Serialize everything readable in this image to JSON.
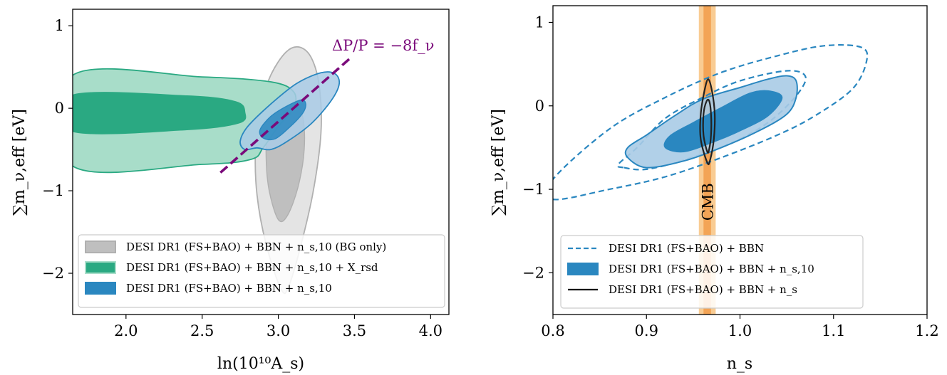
{
  "colors": {
    "gray_outer": "#e4e4e4",
    "gray_inner": "#bfbfbf",
    "gray_edge": "#b0b0b0",
    "green_outer": "#a8ddc9",
    "green_inner": "#2aa982",
    "green_edge": "#2aa982",
    "blue_outer": "#a9cbe6",
    "blue_inner": "#2a87c0",
    "blue_edge": "#2a87c0",
    "purple": "#7a0a7a",
    "cmb_light": "#f9cc93",
    "cmb_dark": "#f3a456"
  },
  "chart_data": [
    {
      "type": "contour",
      "xlabel": "ln(10¹⁰A_s)",
      "ylabel": "∑m_ν,eff [eV]",
      "xlim": [
        1.65,
        4.12
      ],
      "ylim": [
        -2.5,
        1.2
      ],
      "xticks": [
        2.0,
        2.5,
        3.0,
        3.5,
        4.0
      ],
      "xtick_labels": [
        "2.0",
        "2.5",
        "3.0",
        "3.5",
        "4.0"
      ],
      "yticks": [
        1,
        0,
        -1,
        -2
      ],
      "ytick_labels": [
        "1",
        "0",
        "−1",
        "−2"
      ],
      "annotation": {
        "text": "ΔP/P = −8f_ν",
        "line": [
          [
            2.62,
            -0.78
          ],
          [
            3.48,
            0.62
          ]
        ]
      },
      "legend": {
        "position": "lower-right",
        "entries": [
          {
            "label": "DESI DR1 (FS+BAO) + BBN + n_s,10 (BG only)",
            "color": "#bfbfbf"
          },
          {
            "label": "DESI DR1 (FS+BAO) + BBN + n_s,10 + X_rsd",
            "color": "#2aa982"
          },
          {
            "label": "DESI DR1 (FS+BAO) + BBN + n_s,10",
            "color": "#2a87c0"
          }
        ]
      },
      "series": [
        {
          "name": "DESI DR1 (FS+BAO) + BBN + n_s,10 (BG only)",
          "outer": [
            [
              3.02,
              -2.2
            ],
            [
              2.92,
              -1.65
            ],
            [
              2.86,
              -1.05
            ],
            [
              2.85,
              -0.5
            ],
            [
              2.88,
              0.0
            ],
            [
              2.95,
              0.4
            ],
            [
              3.05,
              0.68
            ],
            [
              3.14,
              0.74
            ],
            [
              3.22,
              0.6
            ],
            [
              3.27,
              0.25
            ],
            [
              3.28,
              -0.3
            ],
            [
              3.23,
              -1.0
            ],
            [
              3.15,
              -1.65
            ],
            [
              3.07,
              -2.15
            ]
          ],
          "inner": [
            [
              3.0,
              -1.35
            ],
            [
              2.94,
              -1.0
            ],
            [
              2.92,
              -0.6
            ],
            [
              2.93,
              -0.2
            ],
            [
              2.97,
              0.05
            ],
            [
              3.04,
              0.18
            ],
            [
              3.1,
              0.15
            ],
            [
              3.16,
              -0.1
            ],
            [
              3.17,
              -0.5
            ],
            [
              3.13,
              -0.95
            ],
            [
              3.06,
              -1.3
            ]
          ]
        },
        {
          "name": "DESI DR1 (FS+BAO) + BBN + n_s,10 + X_rsd",
          "outer": [
            [
              1.65,
              0.4
            ],
            [
              2.5,
              0.38
            ],
            [
              2.95,
              0.32
            ],
            [
              3.1,
              0.2
            ],
            [
              3.1,
              0.0
            ],
            [
              3.0,
              -0.22
            ],
            [
              2.9,
              -0.48
            ],
            [
              2.82,
              -0.62
            ],
            [
              2.5,
              -0.68
            ],
            [
              1.65,
              -0.7
            ]
          ],
          "inner": [
            [
              1.65,
              0.16
            ],
            [
              2.4,
              0.15
            ],
            [
              2.72,
              0.08
            ],
            [
              2.78,
              -0.05
            ],
            [
              2.74,
              -0.18
            ],
            [
              2.4,
              -0.26
            ],
            [
              1.65,
              -0.28
            ]
          ]
        },
        {
          "name": "DESI DR1 (FS+BAO) + BBN + n_s,10",
          "outer": [
            [
              2.86,
              -0.48
            ],
            [
              2.78,
              -0.5
            ],
            [
              2.75,
              -0.4
            ],
            [
              2.8,
              -0.22
            ],
            [
              2.95,
              0.05
            ],
            [
              3.12,
              0.3
            ],
            [
              3.28,
              0.43
            ],
            [
              3.37,
              0.42
            ],
            [
              3.4,
              0.3
            ],
            [
              3.35,
              0.1
            ],
            [
              3.22,
              -0.18
            ],
            [
              3.06,
              -0.4
            ],
            [
              2.95,
              -0.5
            ]
          ],
          "inner": [
            [
              2.9,
              -0.36
            ],
            [
              2.88,
              -0.26
            ],
            [
              2.95,
              -0.1
            ],
            [
              3.05,
              0.02
            ],
            [
              3.15,
              0.1
            ],
            [
              3.18,
              0.05
            ],
            [
              3.16,
              -0.06
            ],
            [
              3.08,
              -0.22
            ],
            [
              2.98,
              -0.37
            ]
          ]
        }
      ]
    },
    {
      "type": "contour",
      "xlabel": "n_s",
      "ylabel": "∑m_ν,eff [eV]",
      "xlim": [
        0.8,
        1.2
      ],
      "ylim": [
        -2.5,
        1.2
      ],
      "xticks": [
        0.8,
        0.9,
        1.0,
        1.1,
        1.2
      ],
      "xtick_labels": [
        "0.8",
        "0.9",
        "1.0",
        "1.1",
        "1.2"
      ],
      "yticks": [
        1,
        0,
        -1,
        -2
      ],
      "ytick_labels": [
        "1",
        "0",
        "−1",
        "−2"
      ],
      "annotation": {
        "text": "CMB",
        "band": {
          "center": 0.965,
          "inner_halfwidth": 0.004,
          "outer_halfwidth": 0.009
        }
      },
      "legend": {
        "position": "lower-right",
        "entries": [
          {
            "label": "DESI DR1 (FS+BAO) + BBN",
            "style": "dashed",
            "color": "#2a87c0"
          },
          {
            "label": "DESI DR1 (FS+BAO) + BBN + n_s,10",
            "style": "filled",
            "color": "#2a87c0"
          },
          {
            "label": "DESI DR1 (FS+BAO) + BBN + n_s",
            "style": "solid",
            "color": "#000000"
          }
        ]
      },
      "series": [
        {
          "name": "DESI DR1 (FS+BAO) + BBN",
          "outer": [
            [
              0.8,
              -1.12
            ],
            [
              0.86,
              -1.0
            ],
            [
              0.92,
              -0.85
            ],
            [
              0.98,
              -0.62
            ],
            [
              1.04,
              -0.35
            ],
            [
              1.08,
              -0.12
            ],
            [
              1.12,
              0.2
            ],
            [
              1.135,
              0.52
            ],
            [
              1.13,
              0.7
            ],
            [
              1.09,
              0.72
            ],
            [
              1.04,
              0.6
            ],
            [
              0.98,
              0.4
            ],
            [
              0.92,
              0.1
            ],
            [
              0.86,
              -0.28
            ],
            [
              0.8,
              -0.88
            ]
          ],
          "inner": [
            [
              0.876,
              -0.74
            ],
            [
              0.9,
              -0.76
            ],
            [
              0.94,
              -0.65
            ],
            [
              0.99,
              -0.45
            ],
            [
              1.03,
              -0.2
            ],
            [
              1.06,
              0.12
            ],
            [
              1.07,
              0.35
            ],
            [
              1.05,
              0.42
            ],
            [
              1.0,
              0.3
            ],
            [
              0.96,
              0.1
            ],
            [
              0.92,
              -0.15
            ],
            [
              0.89,
              -0.5
            ],
            [
              0.87,
              -0.7
            ]
          ]
        },
        {
          "name": "DESI DR1 (FS+BAO) + BBN + n_s,10",
          "outer": [
            [
              0.88,
              -0.62
            ],
            [
              0.88,
              -0.5
            ],
            [
              0.9,
              -0.35
            ],
            [
              0.93,
              -0.12
            ],
            [
              0.96,
              0.08
            ],
            [
              1.0,
              0.22
            ],
            [
              1.03,
              0.32
            ],
            [
              1.05,
              0.36
            ],
            [
              1.06,
              0.3
            ],
            [
              1.06,
              0.1
            ],
            [
              1.05,
              -0.1
            ],
            [
              1.02,
              -0.3
            ],
            [
              0.98,
              -0.5
            ],
            [
              0.94,
              -0.66
            ],
            [
              0.9,
              -0.74
            ]
          ],
          "inner": [
            [
              0.92,
              -0.5
            ],
            [
              0.925,
              -0.36
            ],
            [
              0.95,
              -0.2
            ],
            [
              0.98,
              -0.02
            ],
            [
              1.01,
              0.15
            ],
            [
              1.03,
              0.18
            ],
            [
              1.045,
              0.1
            ],
            [
              1.03,
              -0.12
            ],
            [
              1.0,
              -0.3
            ],
            [
              0.97,
              -0.44
            ],
            [
              0.94,
              -0.55
            ]
          ]
        },
        {
          "name": "DESI DR1 (FS+BAO) + BBN + n_s",
          "outer": [
            [
              0.965,
              -0.68
            ],
            [
              0.958,
              -0.4
            ],
            [
              0.958,
              -0.1
            ],
            [
              0.962,
              0.18
            ],
            [
              0.966,
              0.32
            ],
            [
              0.97,
              0.18
            ],
            [
              0.973,
              -0.1
            ],
            [
              0.972,
              -0.4
            ],
            [
              0.968,
              -0.65
            ]
          ],
          "inner": [
            [
              0.965,
              -0.55
            ],
            [
              0.961,
              -0.35
            ],
            [
              0.961,
              -0.1
            ],
            [
              0.964,
              0.05
            ],
            [
              0.967,
              0.06
            ],
            [
              0.969,
              -0.1
            ],
            [
              0.969,
              -0.35
            ],
            [
              0.967,
              -0.52
            ]
          ]
        }
      ]
    }
  ]
}
